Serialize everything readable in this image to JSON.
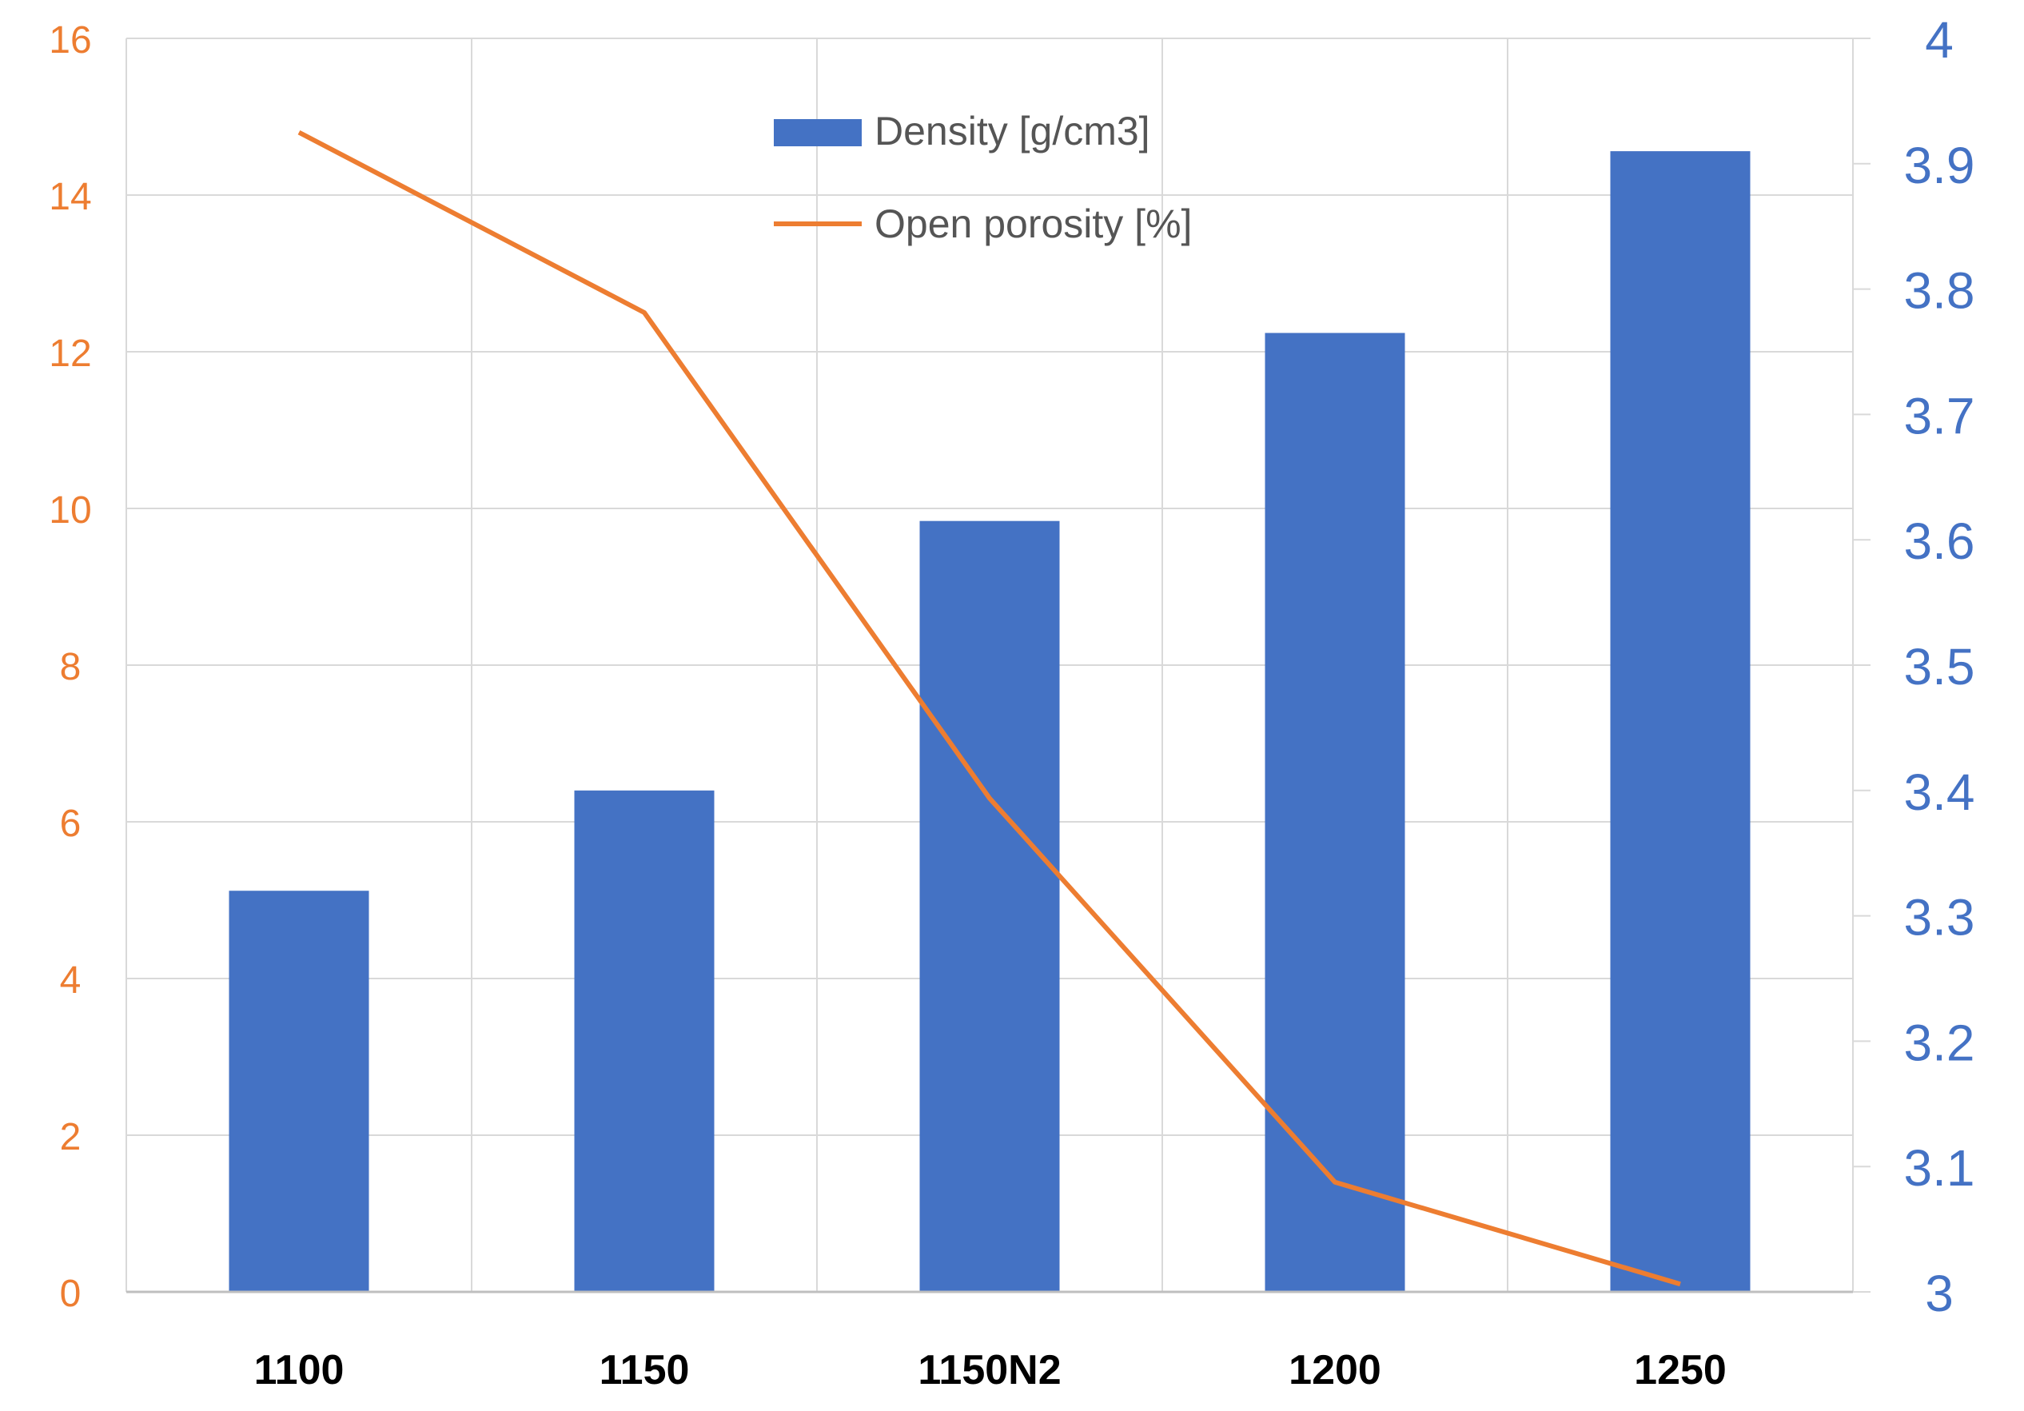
{
  "chart_data": {
    "type": "bar+line",
    "title": "",
    "xlabel": "",
    "categories": [
      "1100",
      "1150",
      "1150N2",
      "1200",
      "1250"
    ],
    "series": [
      {
        "name": "Density [g/cm3]",
        "type": "bar",
        "axis": "right",
        "color": "#4472c4",
        "values": [
          3.32,
          3.4,
          3.615,
          3.765,
          3.91
        ]
      },
      {
        "name": "Open porosity [%]",
        "type": "line",
        "axis": "left",
        "color": "#ed7d31",
        "values": [
          14.8,
          12.5,
          6.3,
          1.4,
          0.1
        ]
      }
    ],
    "left_axis": {
      "color": "#ed7d31",
      "ylim": [
        0,
        16
      ],
      "ticks": [
        "0",
        "2",
        "4",
        "6",
        "8",
        "10",
        "12",
        "14",
        "16"
      ],
      "tick_values": [
        0,
        2,
        4,
        6,
        8,
        10,
        12,
        14,
        16
      ]
    },
    "right_axis": {
      "color": "#4472c4",
      "ylim": [
        3,
        4
      ],
      "ticks": [
        "3",
        "3.1",
        "3.2",
        "3.3",
        "3.4",
        "3.5",
        "3.6",
        "3.7",
        "3.8",
        "3.9",
        "4"
      ],
      "tick_values": [
        3,
        3.1,
        3.2,
        3.3,
        3.4,
        3.5,
        3.6,
        3.7,
        3.8,
        3.9,
        4
      ]
    },
    "grid": true,
    "legend_placement": "top-center"
  }
}
